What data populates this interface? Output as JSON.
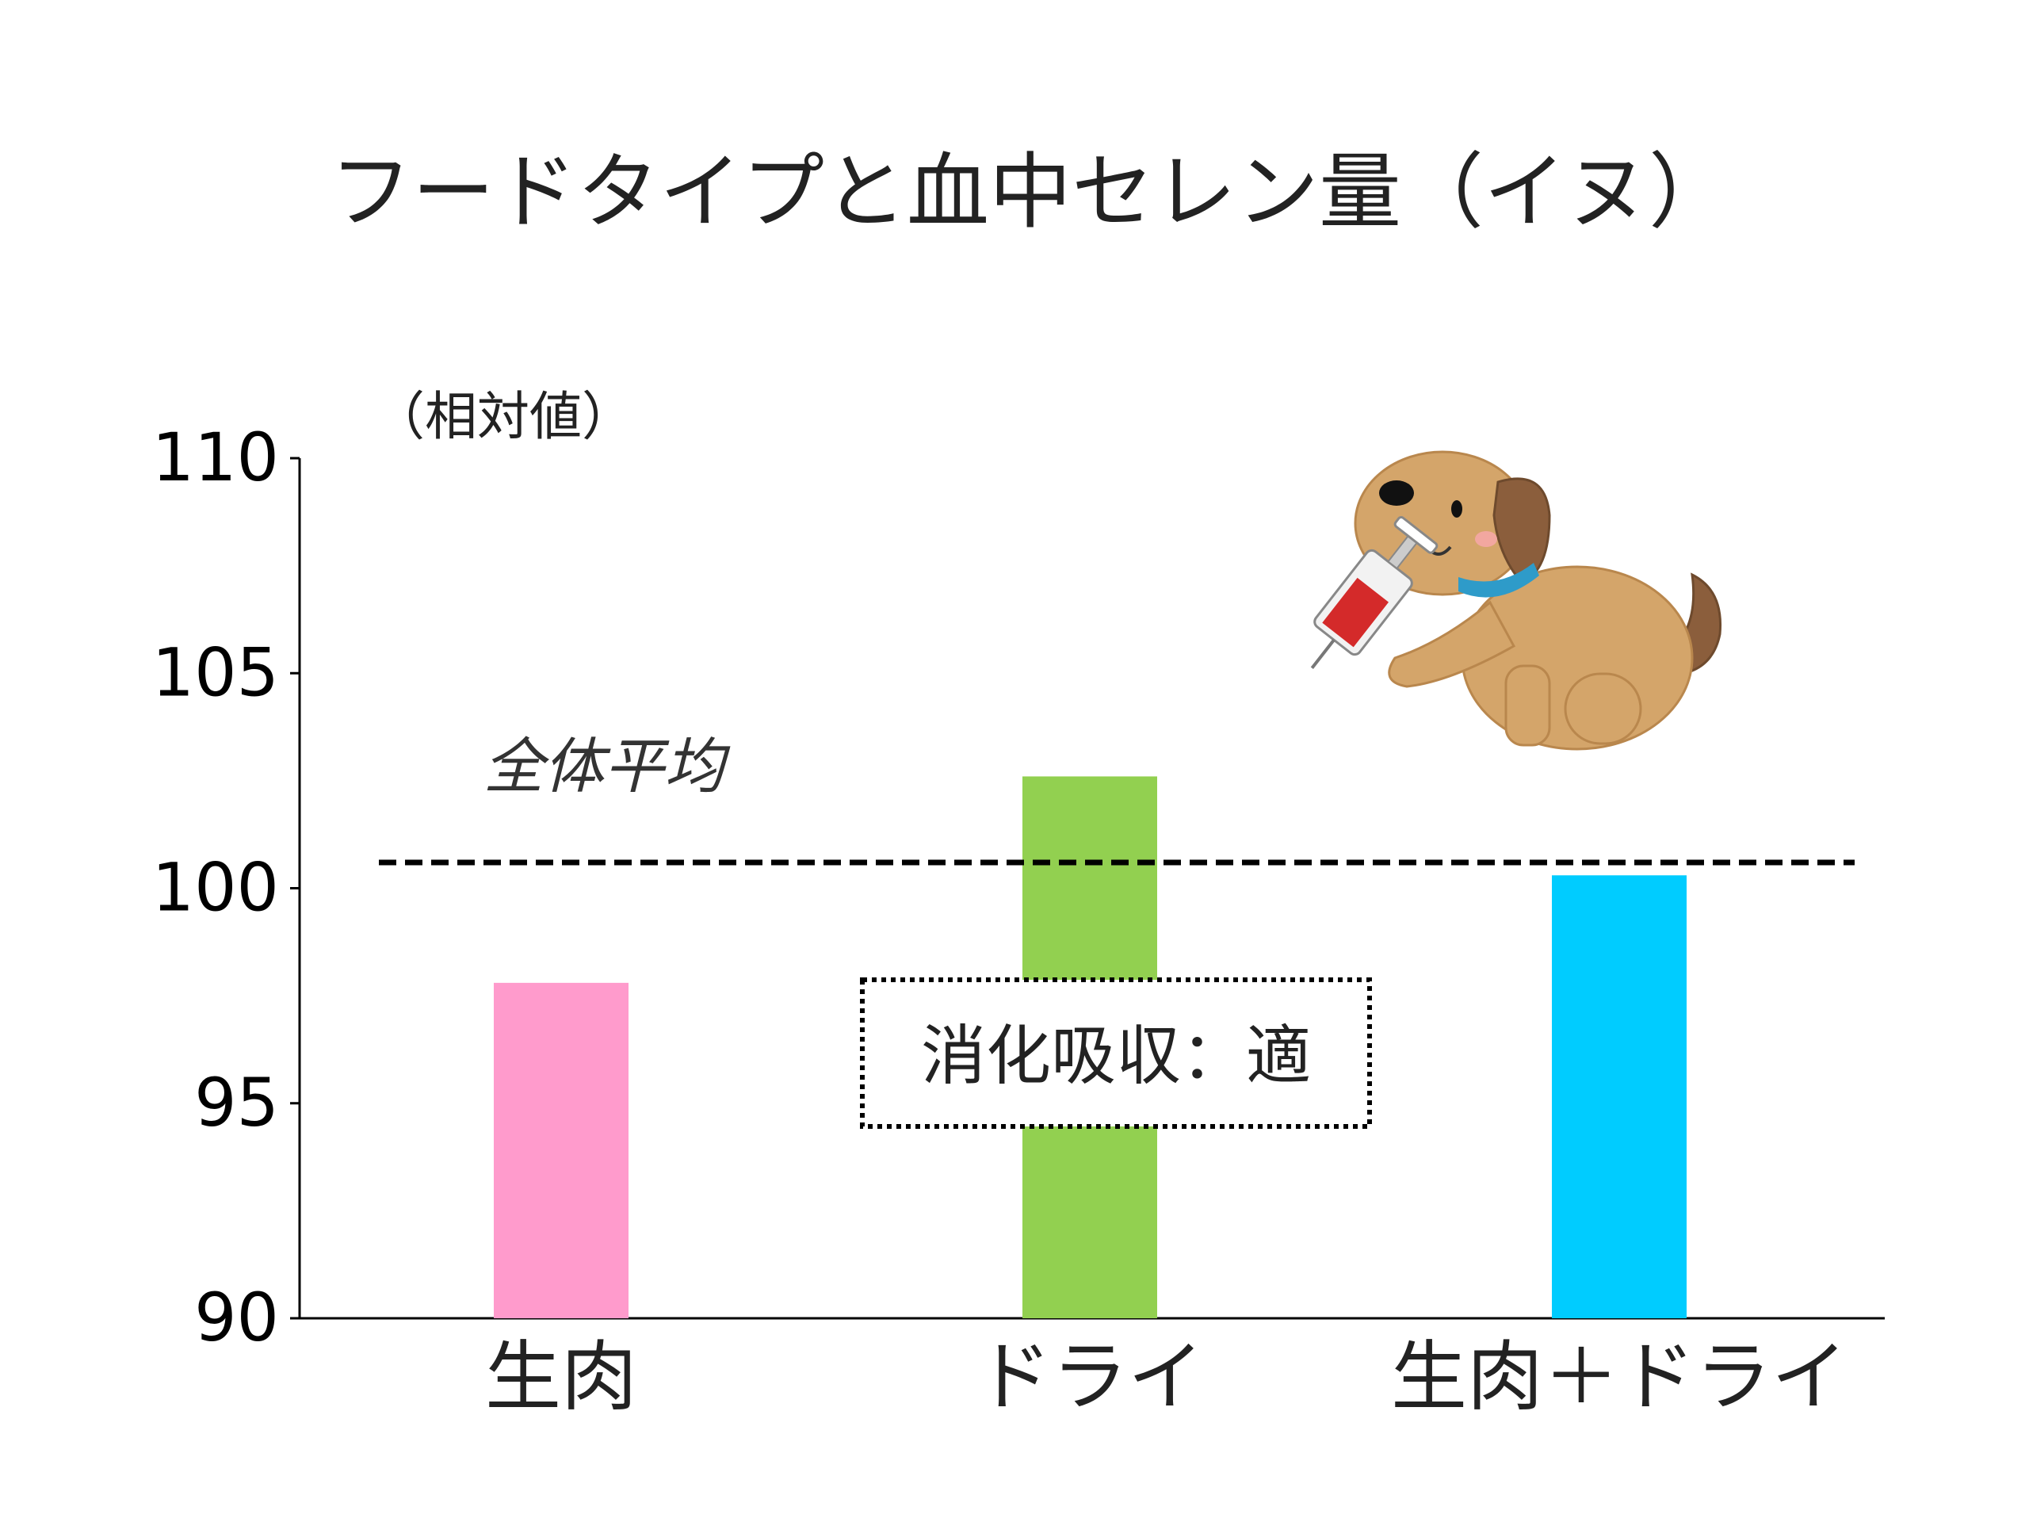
{
  "chart_data": {
    "type": "bar",
    "title": "フードタイプと血中セレン量（イヌ）",
    "ylabel": "（相対値）",
    "categories": [
      "生肉",
      "ドライ",
      "生肉＋ドライ"
    ],
    "values": [
      97.8,
      102.6,
      100.3
    ],
    "colors": [
      "#FF9BCC",
      "#92D050",
      "#00CCFF"
    ],
    "ylim": [
      90,
      110
    ],
    "yticks": [
      90,
      95,
      100,
      105,
      110
    ],
    "reference_line": {
      "value": 100.6,
      "label": "全体平均",
      "style": "dashed",
      "color": "#000000"
    },
    "annotation": {
      "text": "消化吸収：適",
      "style": "dotted-box"
    },
    "grid": false,
    "illustration": "dog-with-syringe"
  }
}
